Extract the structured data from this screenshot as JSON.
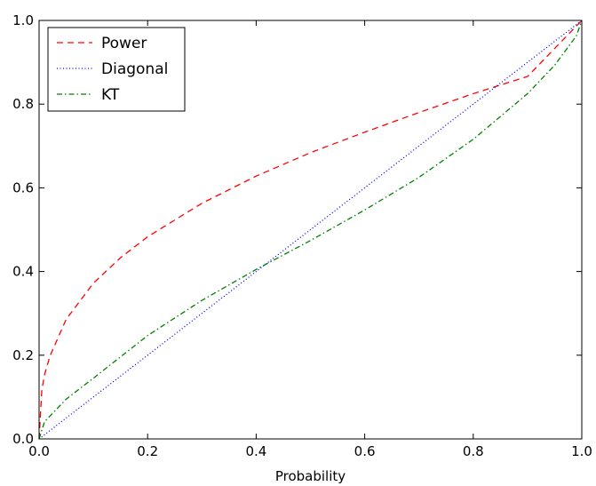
{
  "chart_data": {
    "type": "line",
    "xlabel": "Probability",
    "ylabel": "",
    "xlim": [
      0.0,
      1.0
    ],
    "ylim": [
      0.0,
      1.0
    ],
    "xticks": [
      "0.0",
      "0.2",
      "0.4",
      "0.6",
      "0.8",
      "1.0"
    ],
    "yticks": [
      "0.0",
      "0.2",
      "0.4",
      "0.6",
      "0.8",
      "1.0"
    ],
    "grid": false,
    "legend_position": "top-left",
    "series": [
      {
        "name": "Power",
        "color": "#ff0000",
        "style": "dashed",
        "x": [
          0.0,
          0.005,
          0.01,
          0.02,
          0.05,
          0.1,
          0.15,
          0.2,
          0.3,
          0.4,
          0.5,
          0.6,
          0.7,
          0.8,
          0.9,
          1.0
        ],
        "y": [
          0.0,
          0.116,
          0.153,
          0.198,
          0.286,
          0.372,
          0.433,
          0.483,
          0.563,
          0.628,
          0.684,
          0.733,
          0.78,
          0.825,
          0.866,
          1.0
        ]
      },
      {
        "name": "Diagonal",
        "color": "#0000ff",
        "style": "dotted",
        "x": [
          0.0,
          1.0
        ],
        "y": [
          0.0,
          1.0
        ]
      },
      {
        "name": "KT",
        "color": "#008000",
        "style": "dashdot",
        "x": [
          0.0,
          0.01,
          0.05,
          0.1,
          0.2,
          0.3,
          0.4,
          0.5,
          0.6,
          0.7,
          0.8,
          0.9,
          0.95,
          0.99,
          1.0
        ],
        "y": [
          0.0,
          0.041,
          0.095,
          0.145,
          0.247,
          0.331,
          0.405,
          0.474,
          0.547,
          0.625,
          0.716,
          0.825,
          0.893,
          0.963,
          1.0
        ]
      }
    ]
  }
}
